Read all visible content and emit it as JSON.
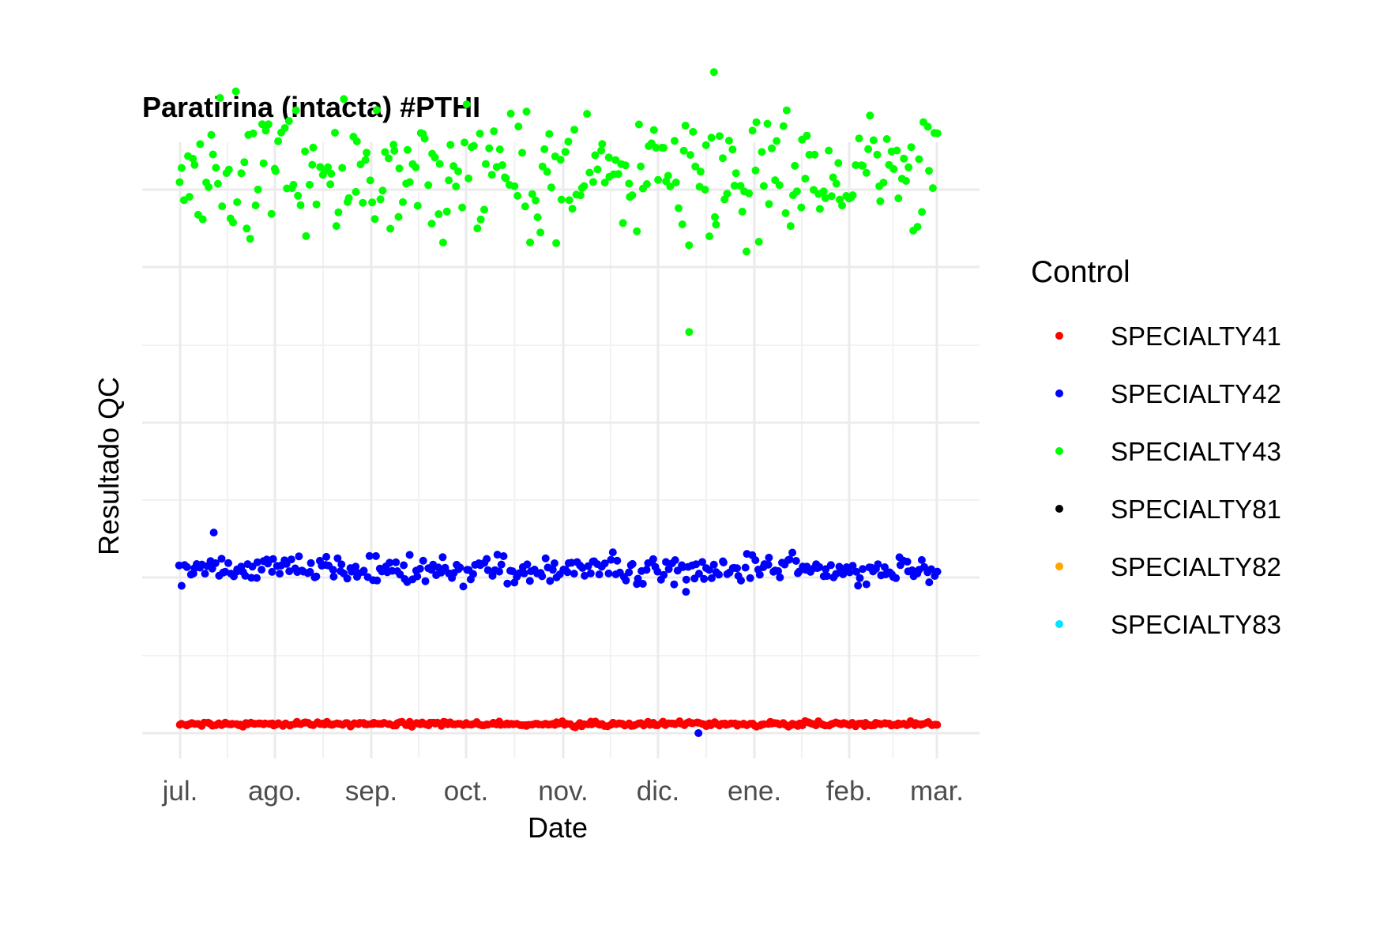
{
  "chart_data": {
    "type": "scatter",
    "title": "Paratirina (intacta) #PTHI",
    "xlabel": "Date",
    "ylabel": "Resultado QC",
    "x_ticks": [
      "jul.",
      "ago.",
      "sep.",
      "oct.",
      "nov.",
      "dic.",
      "ene.",
      "feb.",
      "mar."
    ],
    "y_ticks_shown": false,
    "grid": true,
    "legend": {
      "title": "Control",
      "position": "right",
      "items": [
        {
          "name": "SPECIALTY41",
          "color": "#FF0000"
        },
        {
          "name": "SPECIALTY42",
          "color": "#0000FF"
        },
        {
          "name": "SPECIALTY43",
          "color": "#00FF00"
        },
        {
          "name": "SPECIALTY81",
          "color": "#000000"
        },
        {
          "name": "SPECIALTY82",
          "color": "#FFA500"
        },
        {
          "name": "SPECIALTY83",
          "color": "#00E5FF"
        }
      ]
    },
    "series": [
      {
        "name": "SPECIALTY41",
        "color": "#FF0000",
        "x_range": [
          "2023-07-01",
          "2024-03-01"
        ],
        "y_center": 0.2,
        "y_spread": 0.08
      },
      {
        "name": "SPECIALTY42",
        "color": "#0000FF",
        "x_range": [
          "2023-07-01",
          "2024-03-01"
        ],
        "y_center": 3.6,
        "y_spread": 0.45,
        "outliers": [
          {
            "x": "2023-07-12",
            "y": 4.4
          },
          {
            "x": "2023-12-14",
            "y": 0.0
          },
          {
            "x": "2023-12-10",
            "y": 3.1
          }
        ]
      },
      {
        "name": "SPECIALTY43",
        "color": "#00FF00",
        "x_range": [
          "2023-07-01",
          "2024-03-01"
        ],
        "y_center": 12.3,
        "y_spread": 2.2,
        "outliers": [
          {
            "x": "2023-12-11",
            "y": 8.8
          },
          {
            "x": "2023-12-19",
            "y": 14.5
          }
        ]
      }
    ],
    "note_y_units": "approximate relative scale; y tick labels are not printed"
  }
}
